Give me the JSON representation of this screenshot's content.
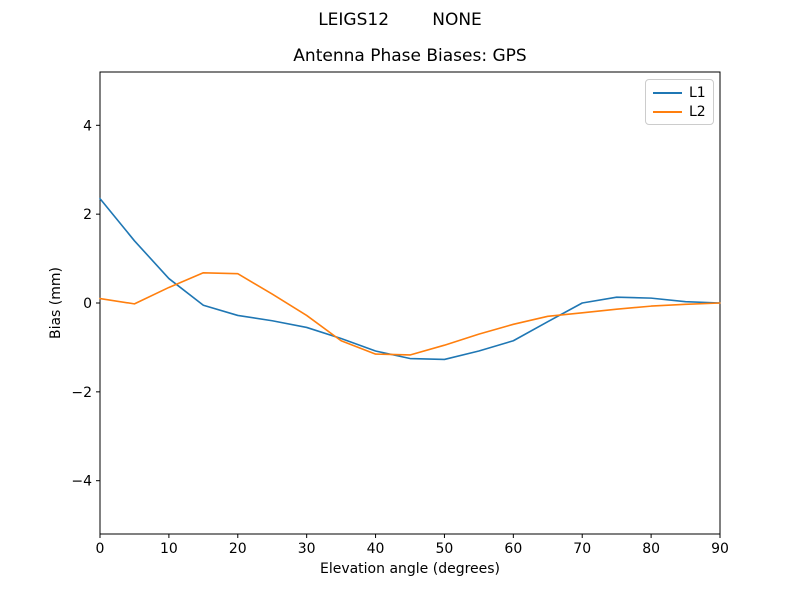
{
  "figure": {
    "suptitle": "LEIGS12        NONE",
    "background": "#ffffff",
    "frame_color": "#000000"
  },
  "chart_data": {
    "type": "line",
    "suptitle": "LEIGS12        NONE",
    "title": "Antenna Phase Biases: GPS",
    "xlabel": "Elevation angle (degrees)",
    "ylabel": "Bias (mm)",
    "xlim": [
      0,
      90
    ],
    "ylim": [
      -5.2,
      5.2
    ],
    "xticks": [
      0,
      10,
      20,
      30,
      40,
      50,
      60,
      70,
      80,
      90
    ],
    "xtick_labels": [
      "0",
      "10",
      "20",
      "30",
      "40",
      "50",
      "60",
      "70",
      "80",
      "90"
    ],
    "yticks": [
      -4,
      -2,
      0,
      2,
      4
    ],
    "ytick_labels": [
      "−4",
      "−2",
      "0",
      "2",
      "4"
    ],
    "grid": false,
    "legend_position": "upper right",
    "x": [
      0,
      5,
      10,
      15,
      20,
      25,
      30,
      35,
      40,
      45,
      50,
      55,
      60,
      65,
      70,
      75,
      80,
      85,
      90
    ],
    "series": [
      {
        "name": "L1",
        "color": "#1f77b4",
        "values": [
          2.35,
          1.4,
          0.55,
          -0.05,
          -0.28,
          -0.4,
          -0.55,
          -0.8,
          -1.08,
          -1.25,
          -1.27,
          -1.08,
          -0.85,
          -0.42,
          0.0,
          0.13,
          0.11,
          0.03,
          0.0
        ]
      },
      {
        "name": "L2",
        "color": "#ff7f0e",
        "values": [
          0.1,
          -0.02,
          0.35,
          0.68,
          0.66,
          0.2,
          -0.28,
          -0.85,
          -1.15,
          -1.17,
          -0.95,
          -0.7,
          -0.48,
          -0.3,
          -0.22,
          -0.14,
          -0.07,
          -0.03,
          0.0
        ]
      }
    ]
  }
}
